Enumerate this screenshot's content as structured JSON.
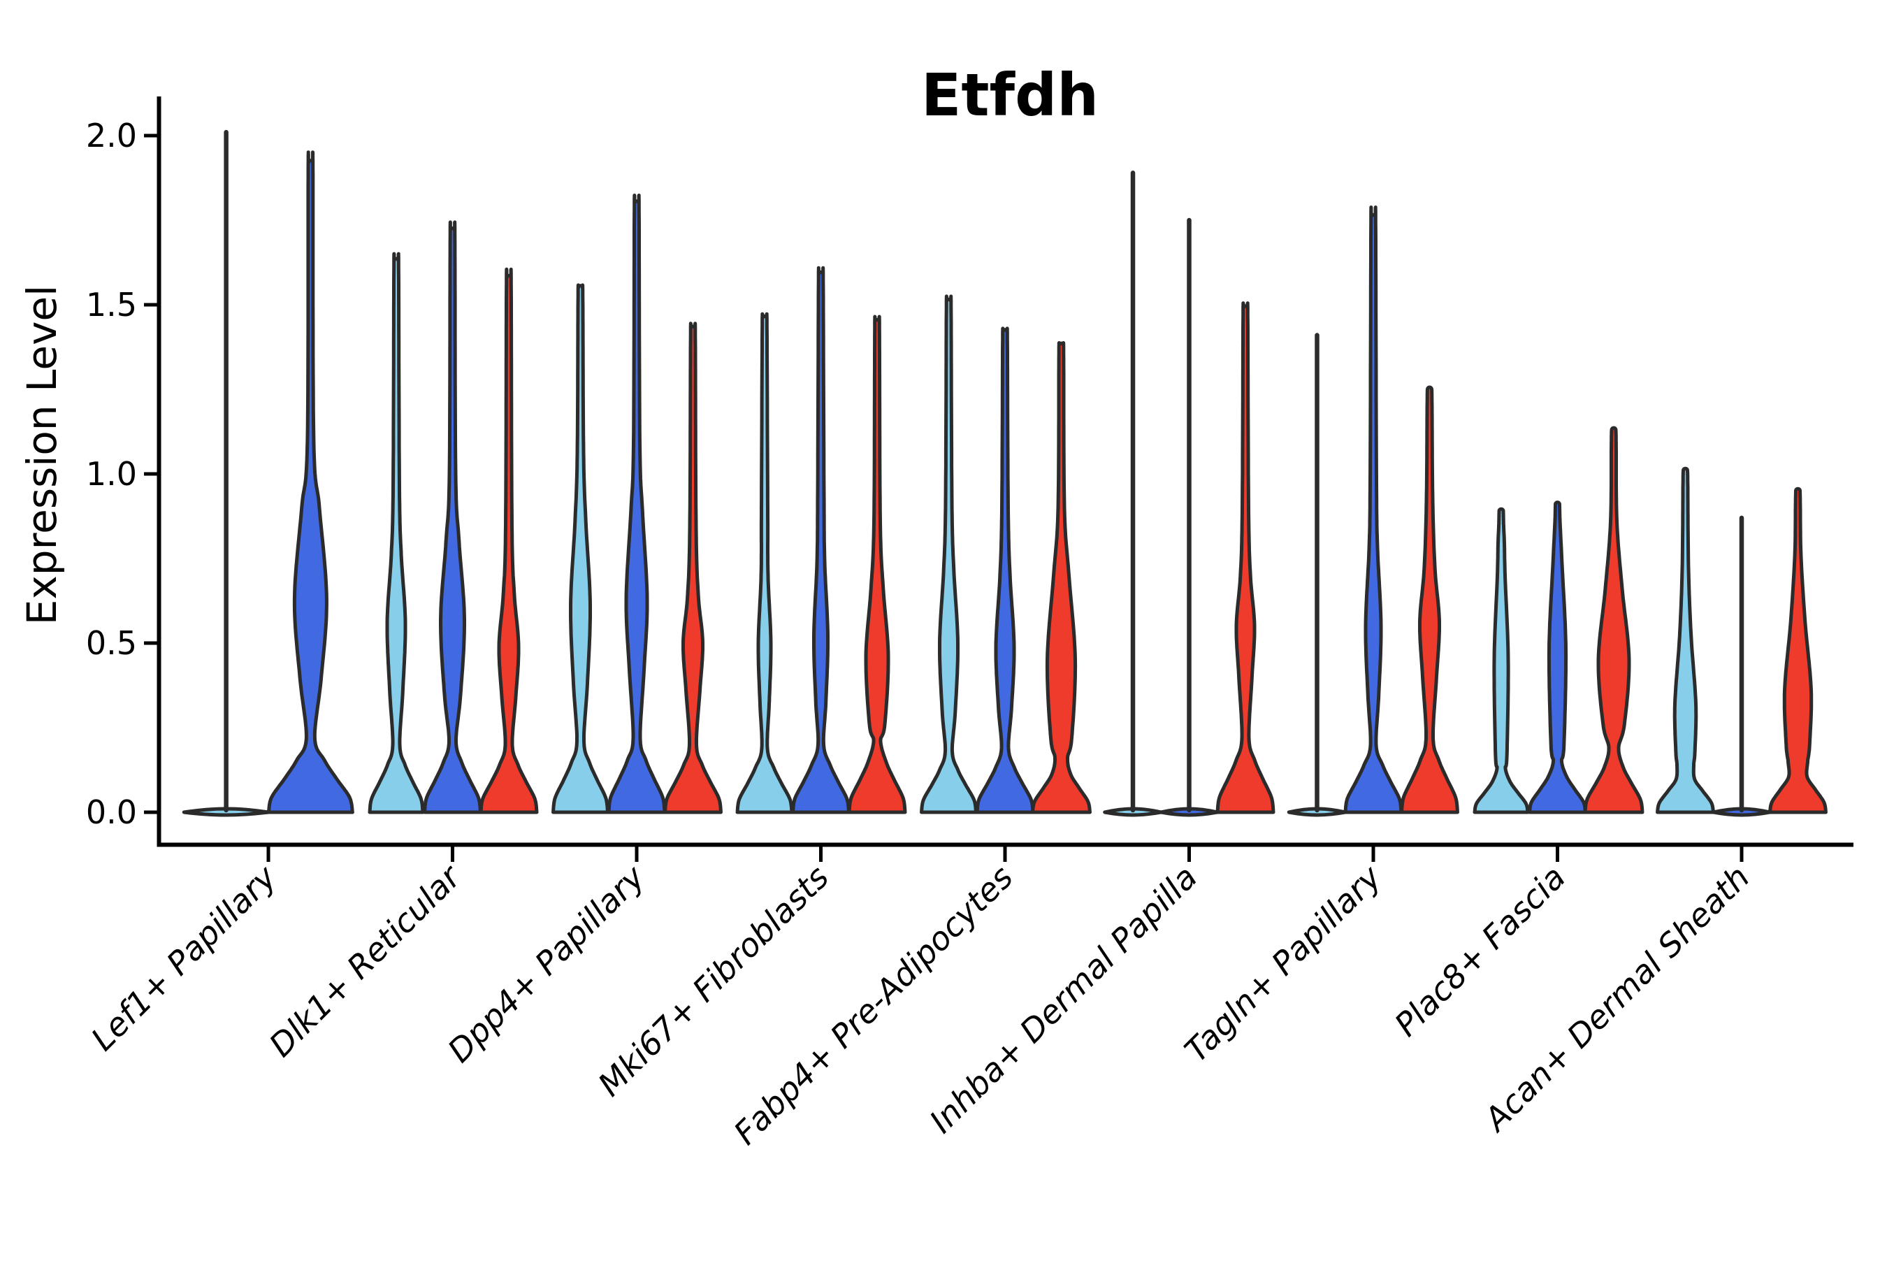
{
  "title": "Etfdh",
  "y_axis": {
    "label": "Expression Level"
  },
  "chart_data": {
    "type": "violin",
    "title": "Etfdh",
    "ylabel": "Expression Level",
    "xlabel": "",
    "ylim": [
      0,
      2.1
    ],
    "yticks": [
      0.0,
      0.5,
      1.0,
      1.5,
      2.0
    ],
    "ytick_labels": [
      "0.0",
      "0.5",
      "1.0",
      "1.5",
      "2.0"
    ],
    "grid": false,
    "legend": "none",
    "split_colors": {
      "light_blue": "#87CEEB",
      "dark_blue": "#4169E1",
      "red": "#EF3B2C"
    },
    "outline_color": "#2b2b2b",
    "groups": [
      {
        "label": "Lef1+ Papillary",
        "violins": [
          {
            "split": "light_blue",
            "max": 2.01,
            "kind": "flat"
          },
          {
            "split": "dark_blue",
            "max": 1.92,
            "kind": "violin",
            "base_hw": 60,
            "waist_v": 0.22,
            "waist_hw": 6,
            "bulge": [
              0.4,
              0.63,
              0.9
            ],
            "bulge_hw": 23
          }
        ]
      },
      {
        "label": "Dlk1+ Reticular",
        "violins": [
          {
            "split": "light_blue",
            "max": 1.63,
            "kind": "violin",
            "base_hw": 38,
            "waist_v": 0.2,
            "waist_hw": 5,
            "bulge": [
              0.36,
              0.56,
              0.76
            ],
            "bulge_hw": 13
          },
          {
            "split": "dark_blue",
            "max": 1.72,
            "kind": "violin",
            "base_hw": 40,
            "waist_v": 0.21,
            "waist_hw": 5,
            "bulge": [
              0.35,
              0.57,
              0.8
            ],
            "bulge_hw": 17
          },
          {
            "split": "red",
            "max": 1.58,
            "kind": "violin",
            "base_hw": 40,
            "waist_v": 0.2,
            "waist_hw": 5,
            "bulge": [
              0.34,
              0.49,
              0.65
            ],
            "bulge_hw": 14
          }
        ]
      },
      {
        "label": "Dpp4+ Papillary",
        "violins": [
          {
            "split": "light_blue",
            "max": 1.55,
            "kind": "violin",
            "base_hw": 39,
            "waist_v": 0.21,
            "waist_hw": 5,
            "bulge": [
              0.38,
              0.61,
              0.86
            ],
            "bulge_hw": 14
          },
          {
            "split": "dark_blue",
            "max": 1.8,
            "kind": "violin",
            "base_hw": 40,
            "waist_v": 0.22,
            "waist_hw": 5,
            "bulge": [
              0.42,
              0.63,
              0.89
            ],
            "bulge_hw": 15
          },
          {
            "split": "red",
            "max": 1.43,
            "kind": "violin",
            "base_hw": 40,
            "waist_v": 0.2,
            "waist_hw": 5,
            "bulge": [
              0.36,
              0.5,
              0.64
            ],
            "bulge_hw": 14
          }
        ]
      },
      {
        "label": "Mki67+ Fibroblasts",
        "violins": [
          {
            "split": "light_blue",
            "max": 1.46,
            "kind": "violin",
            "base_hw": 39,
            "waist_v": 0.19,
            "waist_hw": 4,
            "bulge": [
              0.33,
              0.5,
              0.7
            ],
            "bulge_hw": 9
          },
          {
            "split": "dark_blue",
            "max": 1.59,
            "kind": "violin",
            "base_hw": 40,
            "waist_v": 0.2,
            "waist_hw": 4,
            "bulge": [
              0.33,
              0.52,
              0.74
            ],
            "bulge_hw": 10
          },
          {
            "split": "red",
            "max": 1.45,
            "kind": "violin",
            "base_hw": 40,
            "waist_v": 0.21,
            "waist_hw": 5,
            "bulge": [
              0.26,
              0.46,
              0.66
            ],
            "bulge_hw": 16
          }
        ]
      },
      {
        "label": "Fabp4+ Pre-Adipocytes",
        "violins": [
          {
            "split": "light_blue",
            "max": 1.51,
            "kind": "violin",
            "base_hw": 39,
            "waist_v": 0.18,
            "waist_hw": 5,
            "bulge": [
              0.3,
              0.5,
              0.72
            ],
            "bulge_hw": 13
          },
          {
            "split": "dark_blue",
            "max": 1.42,
            "kind": "violin",
            "base_hw": 40,
            "waist_v": 0.19,
            "waist_hw": 5,
            "bulge": [
              0.31,
              0.49,
              0.7
            ],
            "bulge_hw": 13
          },
          {
            "split": "red",
            "max": 1.38,
            "kind": "violin",
            "base_hw": 41,
            "waist_v": 0.16,
            "waist_hw": 9,
            "bulge": [
              0.22,
              0.45,
              0.7
            ],
            "bulge_hw": 20
          }
        ]
      },
      {
        "label": "Inhba+ Dermal Papilla",
        "violins": [
          {
            "split": "light_blue",
            "max": 1.89,
            "kind": "flat"
          },
          {
            "split": "dark_blue",
            "max": 1.75,
            "kind": "flat"
          },
          {
            "split": "red",
            "max": 1.49,
            "kind": "violin",
            "base_hw": 40,
            "waist_v": 0.22,
            "waist_hw": 5,
            "bulge": [
              0.4,
              0.55,
              0.7
            ],
            "bulge_hw": 13
          }
        ]
      },
      {
        "label": "Tagln+ Papillary",
        "violins": [
          {
            "split": "light_blue",
            "max": 1.41,
            "kind": "flat"
          },
          {
            "split": "dark_blue",
            "max": 1.76,
            "kind": "violin",
            "base_hw": 40,
            "waist_v": 0.2,
            "waist_hw": 4,
            "bulge": [
              0.35,
              0.55,
              0.78
            ],
            "bulge_hw": 11
          },
          {
            "split": "red",
            "max": 1.25,
            "kind": "violin",
            "base_hw": 40,
            "waist_v": 0.22,
            "waist_hw": 5,
            "bulge": [
              0.4,
              0.56,
              0.72
            ],
            "bulge_hw": 14
          }
        ]
      },
      {
        "label": "Plac8+ Fascia",
        "violins": [
          {
            "split": "light_blue",
            "max": 0.89,
            "kind": "violin",
            "base_hw": 38,
            "waist_v": 0.13,
            "waist_hw": 6,
            "bulge": [
              0.17,
              0.45,
              0.7
            ],
            "bulge_hw": 10
          },
          {
            "split": "dark_blue",
            "max": 0.91,
            "kind": "violin",
            "base_hw": 40,
            "waist_v": 0.15,
            "waist_hw": 6,
            "bulge": [
              0.2,
              0.48,
              0.73
            ],
            "bulge_hw": 12
          },
          {
            "split": "red",
            "max": 1.13,
            "kind": "violin",
            "base_hw": 41,
            "waist_v": 0.19,
            "waist_hw": 7,
            "bulge": [
              0.26,
              0.45,
              0.66
            ],
            "bulge_hw": 22
          }
        ]
      },
      {
        "label": "Acan+ Dermal Sheath",
        "violins": [
          {
            "split": "light_blue",
            "max": 1.01,
            "kind": "violin",
            "base_hw": 40,
            "waist_v": 0.14,
            "waist_hw": 12,
            "bulge": [
              0.18,
              0.32,
              0.52
            ],
            "bulge_hw": 15
          },
          {
            "split": "dark_blue",
            "max": 0.87,
            "kind": "flat"
          },
          {
            "split": "red",
            "max": 0.95,
            "kind": "violin",
            "base_hw": 40,
            "waist_v": 0.15,
            "waist_hw": 14,
            "bulge": [
              0.2,
              0.36,
              0.56
            ],
            "bulge_hw": 19
          }
        ]
      }
    ]
  }
}
